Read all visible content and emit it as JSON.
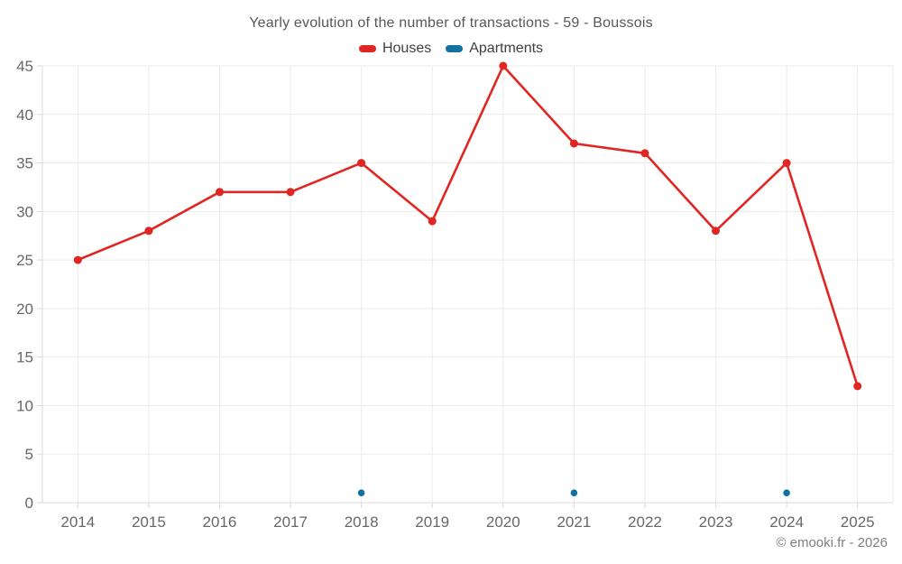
{
  "header": {
    "title": "Yearly evolution of the number of transactions - 59 - Boussois"
  },
  "legend": {
    "items": [
      {
        "label": "Houses",
        "color": "#e02622"
      },
      {
        "label": "Apartments",
        "color": "#1271a0"
      }
    ]
  },
  "footer": {
    "copyright": "© emooki.fr - 2026"
  },
  "chart_data": {
    "type": "line",
    "title": "Yearly evolution of the number of transactions - 59 - Boussois",
    "categories": [
      "2014",
      "2015",
      "2016",
      "2017",
      "2018",
      "2019",
      "2020",
      "2021",
      "2022",
      "2023",
      "2024",
      "2025"
    ],
    "series": [
      {
        "name": "Houses",
        "color": "#e02622",
        "draw_line": true,
        "marker_radius": 4.5,
        "values": [
          25,
          28,
          32,
          32,
          35,
          29,
          45,
          37,
          36,
          28,
          35,
          12
        ]
      },
      {
        "name": "Apartments",
        "color": "#1271a0",
        "draw_line": false,
        "marker_radius": 3.8,
        "values": [
          null,
          null,
          null,
          null,
          1,
          null,
          null,
          1,
          null,
          null,
          1,
          null
        ]
      }
    ],
    "ylim": [
      0,
      45
    ],
    "ytick_step": 5,
    "grid": true,
    "legend_position": "top",
    "xlabel": "",
    "ylabel": ""
  },
  "style": {
    "background": "#ffffff",
    "grid_color": "#ebebeb",
    "axis_color": "#d9d9d9",
    "tick_label_color": "#686868",
    "title_color": "#575757",
    "legend_text_color": "#3f3f3f",
    "copyright_color": "#7f7f7f"
  }
}
